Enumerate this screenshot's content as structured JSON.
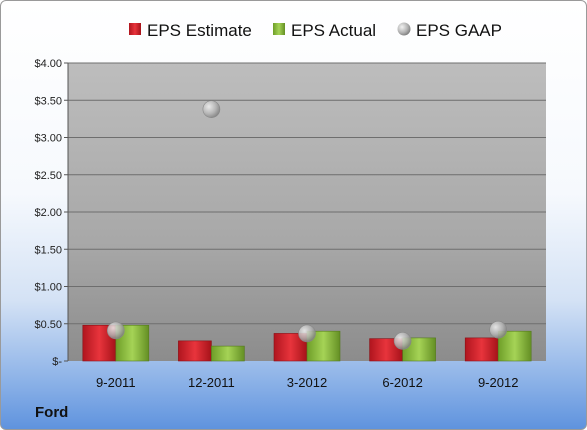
{
  "company": "Ford",
  "colors": {
    "estimate": "#d0202a",
    "actual": "#8bbd3a",
    "gaap": "#a9a9a9"
  },
  "chart_data": {
    "type": "bar",
    "categories": [
      "9-2011",
      "12-2011",
      "3-2012",
      "6-2012",
      "9-2012"
    ],
    "series": [
      {
        "name": "EPS Estimate",
        "kind": "bar",
        "values": [
          0.48,
          0.27,
          0.37,
          0.3,
          0.31
        ]
      },
      {
        "name": "EPS Actual",
        "kind": "bar",
        "values": [
          0.48,
          0.2,
          0.4,
          0.31,
          0.4
        ]
      },
      {
        "name": "EPS GAAP",
        "kind": "scatter",
        "values": [
          0.41,
          3.38,
          0.37,
          0.27,
          0.42
        ]
      }
    ],
    "y_ticks": [
      "$-",
      "$0.50",
      "$1.00",
      "$1.50",
      "$2.00",
      "$2.50",
      "$3.00",
      "$3.50",
      "$4.00"
    ],
    "ylim": [
      0,
      4
    ],
    "grid": true,
    "legend": "top"
  }
}
